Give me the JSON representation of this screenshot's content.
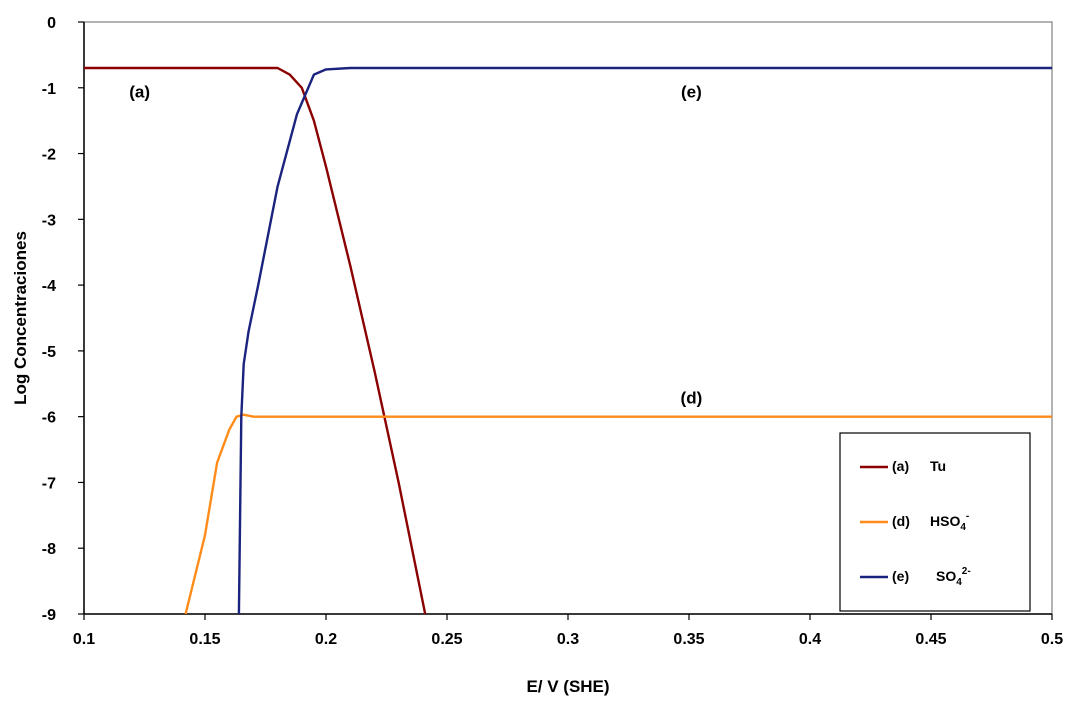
{
  "chart_data": {
    "type": "line",
    "xlabel": "E/ V (SHE)",
    "ylabel": "Log Concentraciones",
    "xlim": [
      0.1,
      0.5
    ],
    "ylim": [
      -9,
      0
    ],
    "x_ticks": [
      "0.1",
      "0.15",
      "0.2",
      "0.25",
      "0.3",
      "0.35",
      "0.4",
      "0.45",
      "0.5"
    ],
    "y_ticks": [
      "0",
      "-1",
      "-2",
      "-3",
      "-4",
      "-5",
      "-6",
      "-7",
      "-8",
      "-9"
    ],
    "grid": false,
    "legend_position": "bottom-right",
    "series": [
      {
        "name": "(a)",
        "species": "Tu",
        "color": "#8B0000",
        "x": [
          0.1,
          0.18,
          0.185,
          0.19,
          0.195,
          0.2,
          0.21,
          0.22,
          0.23,
          0.241
        ],
        "y": [
          -0.7,
          -0.7,
          -0.8,
          -1.0,
          -1.5,
          -2.2,
          -3.7,
          -5.3,
          -7.0,
          -9.0
        ]
      },
      {
        "name": "(d)",
        "species": "HSO4-",
        "color": "#FF8C1A",
        "x": [
          0.142,
          0.15,
          0.155,
          0.16,
          0.163,
          0.166,
          0.17,
          0.3,
          0.5
        ],
        "y": [
          -9.0,
          -7.8,
          -6.7,
          -6.2,
          -6.0,
          -5.97,
          -6.0,
          -6.0,
          -6.0
        ]
      },
      {
        "name": "(e)",
        "species": "SO4 2-",
        "color": "#1A237E",
        "x": [
          0.164,
          0.165,
          0.166,
          0.168,
          0.172,
          0.18,
          0.188,
          0.195,
          0.2,
          0.21,
          0.5
        ],
        "y": [
          -9.0,
          -6.0,
          -5.2,
          -4.7,
          -4.0,
          -2.5,
          -1.4,
          -0.8,
          -0.72,
          -0.7,
          -0.7
        ]
      }
    ],
    "annotations": [
      {
        "text": "(a)",
        "x": 0.123,
        "y": -1.15
      },
      {
        "text": "(e)",
        "x": 0.351,
        "y": -1.15
      },
      {
        "text": "(d)",
        "x": 0.351,
        "y": -5.8
      }
    ],
    "legend": [
      {
        "key": "(a)",
        "label": "Tu",
        "sub": "",
        "sup": ""
      },
      {
        "key": "(d)",
        "label": "HSO",
        "sub": "4",
        "sup": "-"
      },
      {
        "key": "(e)",
        "label": "SO",
        "sub": "4",
        "sup": "2-"
      }
    ]
  }
}
